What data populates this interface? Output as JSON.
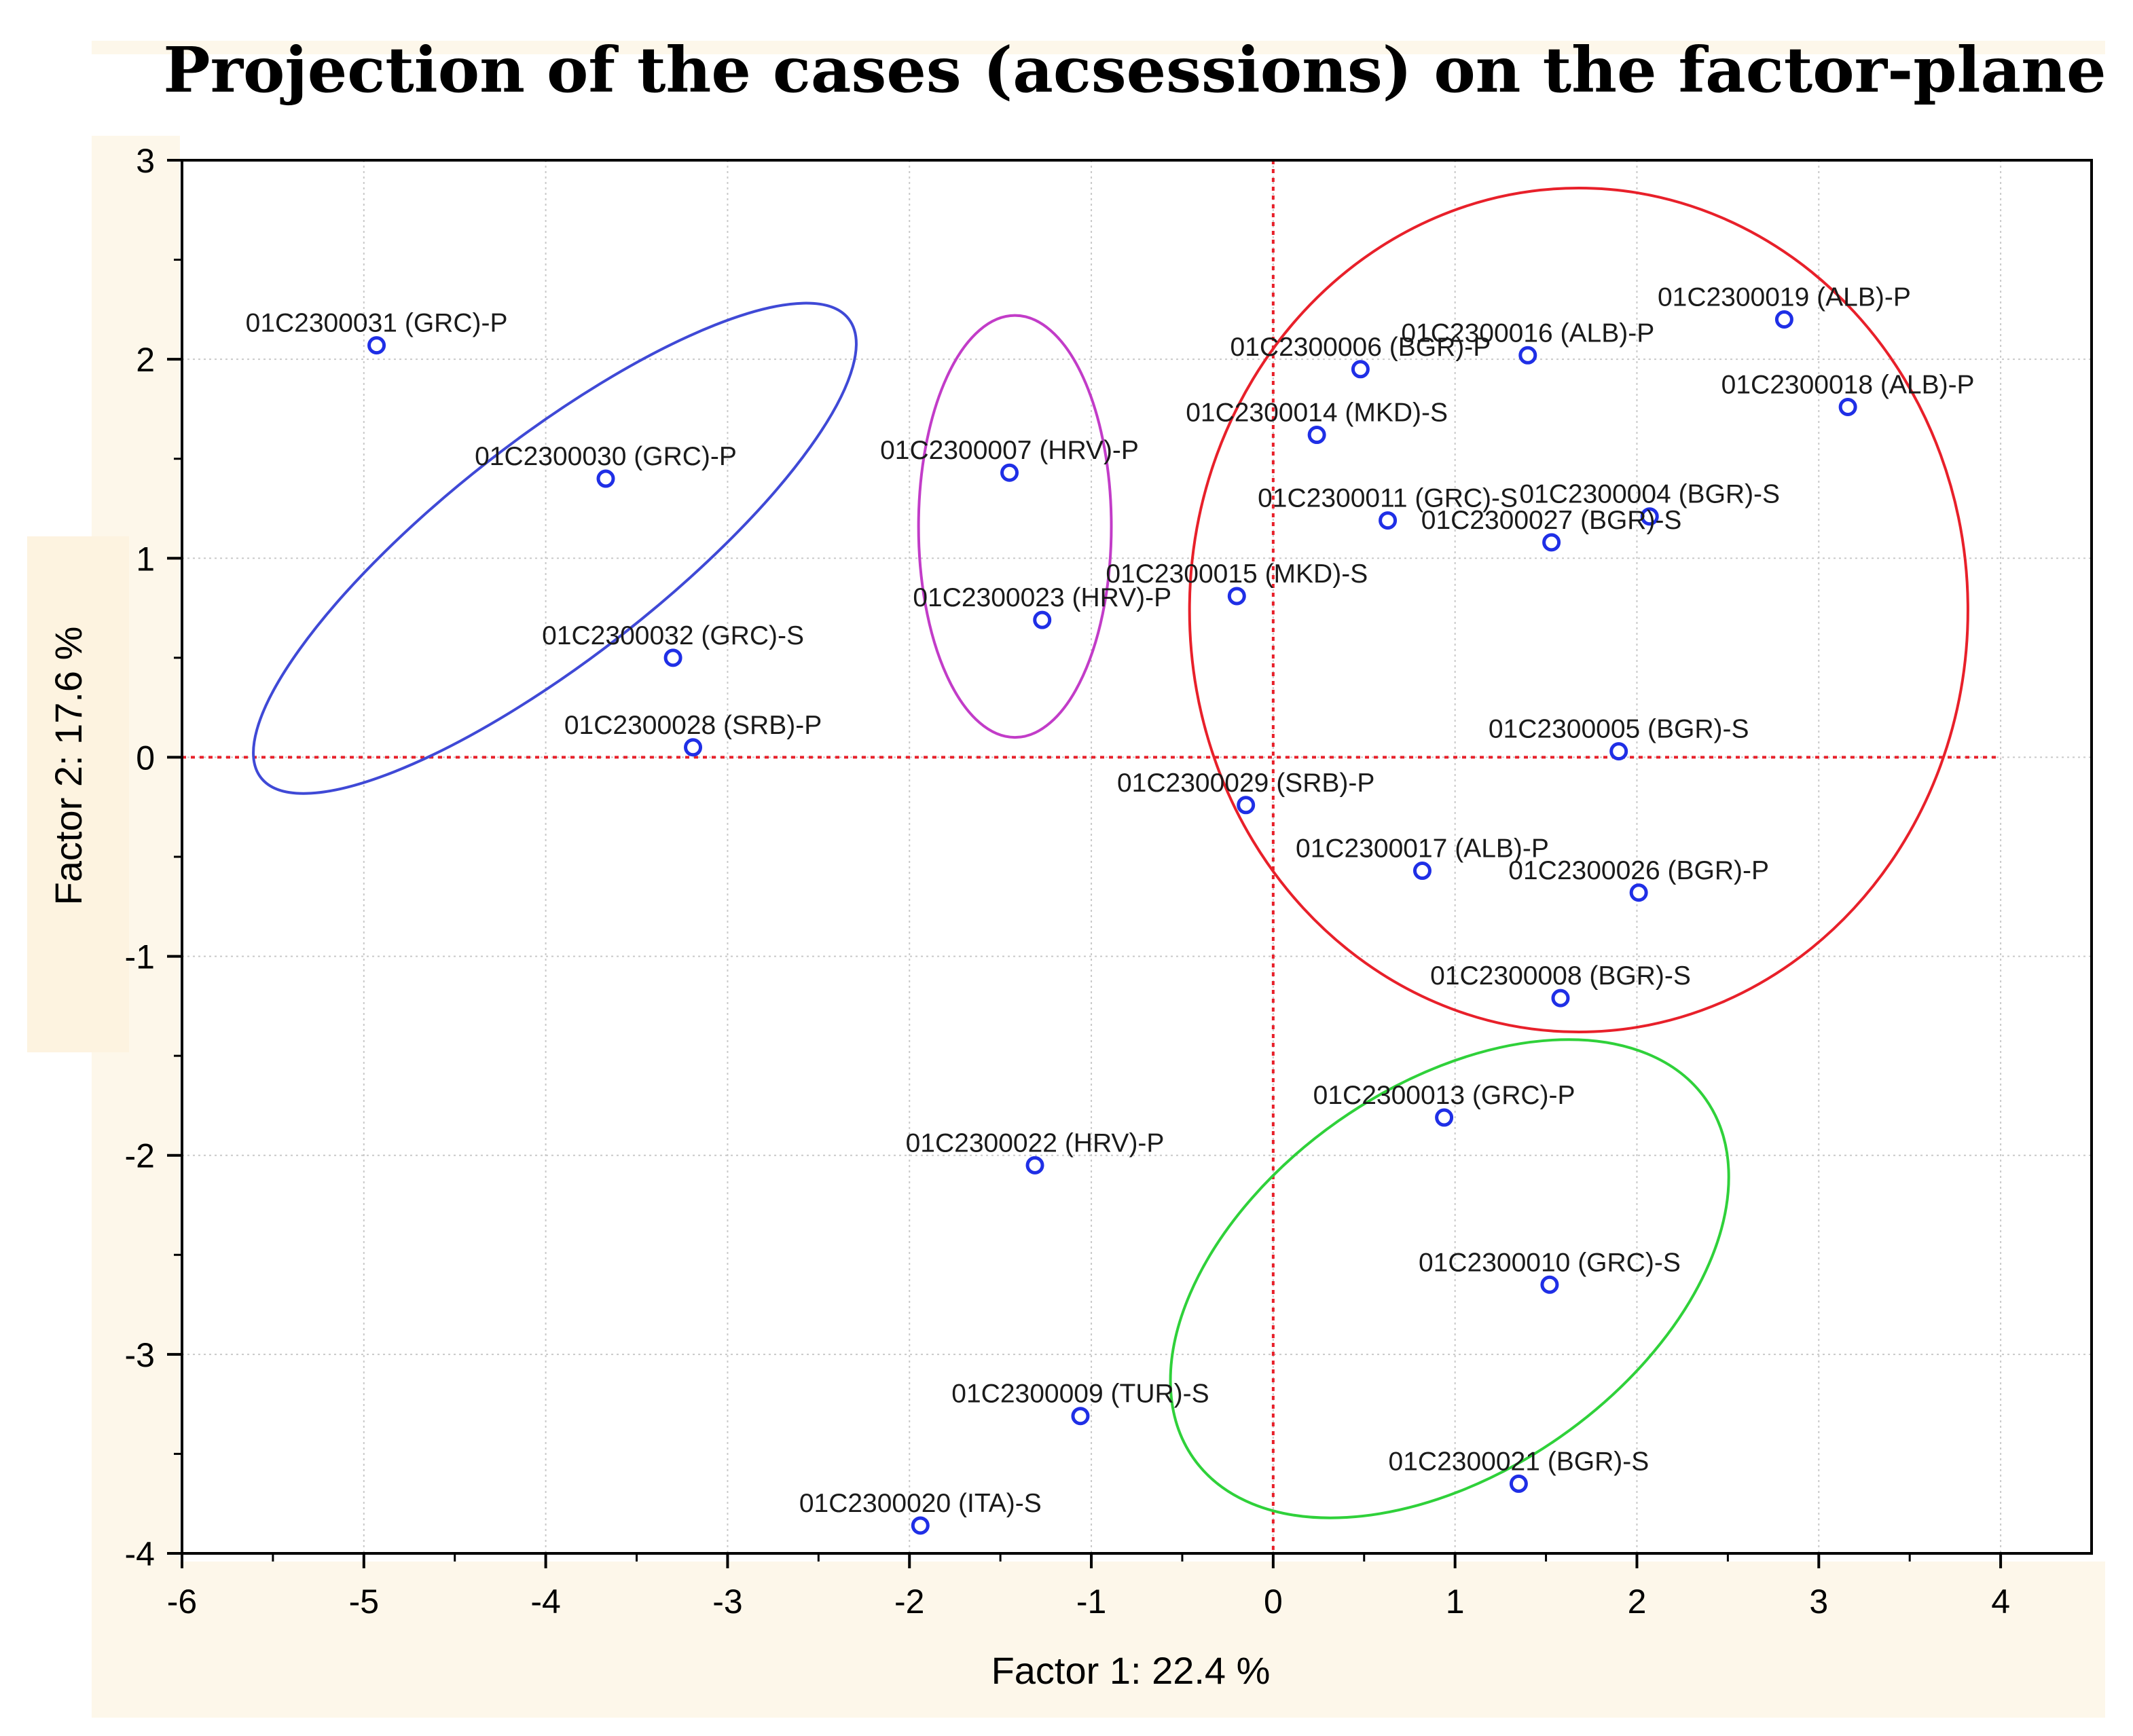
{
  "chart_data": {
    "type": "scatter",
    "title": "Projection of the cases (acsessions) on the factor-plane",
    "xlabel": "Factor 1: 22.4 %",
    "ylabel": "Factor 2: 17.6 %",
    "xlim": [
      -6,
      4.5
    ],
    "ylim": [
      -4,
      3
    ],
    "xticks": [
      -6,
      -5,
      -4,
      -3,
      -2,
      -1,
      0,
      1,
      2,
      3,
      4
    ],
    "yticks": [
      -4,
      -3,
      -2,
      -1,
      0,
      1,
      2,
      3
    ],
    "grid": true,
    "reference_lines": {
      "x": 0,
      "y": 0,
      "color": "#e8202a"
    },
    "colors": {
      "marker": "#1f2fe6",
      "blue_cluster": "#3f49d6",
      "magenta_cluster": "#c23cc8",
      "red_cluster": "#e8202a",
      "green_cluster": "#2fd13a"
    },
    "points": [
      {
        "label": "01C2300031 (GRC)-P",
        "x": -4.93,
        "y": 2.07
      },
      {
        "label": "01C2300030 (GRC)-P",
        "x": -3.67,
        "y": 1.4
      },
      {
        "label": "01C2300032 (GRC)-S",
        "x": -3.3,
        "y": 0.5
      },
      {
        "label": "01C2300028 (SRB)-P",
        "x": -3.19,
        "y": 0.05
      },
      {
        "label": "01C2300007 (HRV)-P",
        "x": -1.45,
        "y": 1.43
      },
      {
        "label": "01C2300023 (HRV)-P",
        "x": -1.27,
        "y": 0.69
      },
      {
        "label": "01C2300006 (BGR)-P",
        "x": 0.48,
        "y": 1.95
      },
      {
        "label": "01C2300016 (ALB)-P",
        "x": 1.4,
        "y": 2.02
      },
      {
        "label": "01C2300019 (ALB)-P",
        "x": 2.81,
        "y": 2.2
      },
      {
        "label": "01C2300018 (ALB)-P",
        "x": 3.16,
        "y": 1.76
      },
      {
        "label": "01C2300014 (MKD)-S",
        "x": 0.24,
        "y": 1.62
      },
      {
        "label": "01C2300011 (GRC)-S",
        "x": 0.63,
        "y": 1.19
      },
      {
        "label": "01C2300004 (BGR)-S",
        "x": 2.07,
        "y": 1.21
      },
      {
        "label": "01C2300027 (BGR)-S",
        "x": 1.53,
        "y": 1.08
      },
      {
        "label": "01C2300015 (MKD)-S",
        "x": -0.2,
        "y": 0.81
      },
      {
        "label": "01C2300005 (BGR)-S",
        "x": 1.9,
        "y": 0.03
      },
      {
        "label": "01C2300029 (SRB)-P",
        "x": -0.15,
        "y": -0.24
      },
      {
        "label": "01C2300017 (ALB)-P",
        "x": 0.82,
        "y": -0.57
      },
      {
        "label": "01C2300026 (BGR)-P",
        "x": 2.01,
        "y": -0.68
      },
      {
        "label": "01C2300008 (BGR)-S",
        "x": 1.58,
        "y": -1.21
      },
      {
        "label": "01C2300013 (GRC)-P",
        "x": 0.94,
        "y": -1.81
      },
      {
        "label": "01C2300022 (HRV)-P",
        "x": -1.31,
        "y": -2.05
      },
      {
        "label": "01C2300010 (GRC)-S",
        "x": 1.52,
        "y": -2.65
      },
      {
        "label": "01C2300009 (TUR)-S",
        "x": -1.06,
        "y": -3.31
      },
      {
        "label": "01C2300021 (BGR)-S",
        "x": 1.35,
        "y": -3.65
      },
      {
        "label": "01C2300020 (ITA)-S",
        "x": -1.94,
        "y": -3.86
      }
    ],
    "clusters": [
      {
        "name": "blue",
        "color": "#3f49d6",
        "cx": -3.95,
        "cy": 1.05,
        "rx": 2.05,
        "ry": 0.55,
        "angle": -38
      },
      {
        "name": "magenta",
        "color": "#c23cc8",
        "cx": -1.42,
        "cy": 1.16,
        "rx": 0.53,
        "ry": 1.06,
        "angle": 0
      },
      {
        "name": "red",
        "color": "#e8202a",
        "cx": 1.68,
        "cy": 0.74,
        "rx": 2.14,
        "ry": 2.12,
        "angle": 0
      },
      {
        "name": "green",
        "color": "#2fd13a",
        "cx": 0.97,
        "cy": -2.62,
        "rx": 1.72,
        "ry": 0.97,
        "angle": -35
      }
    ]
  }
}
